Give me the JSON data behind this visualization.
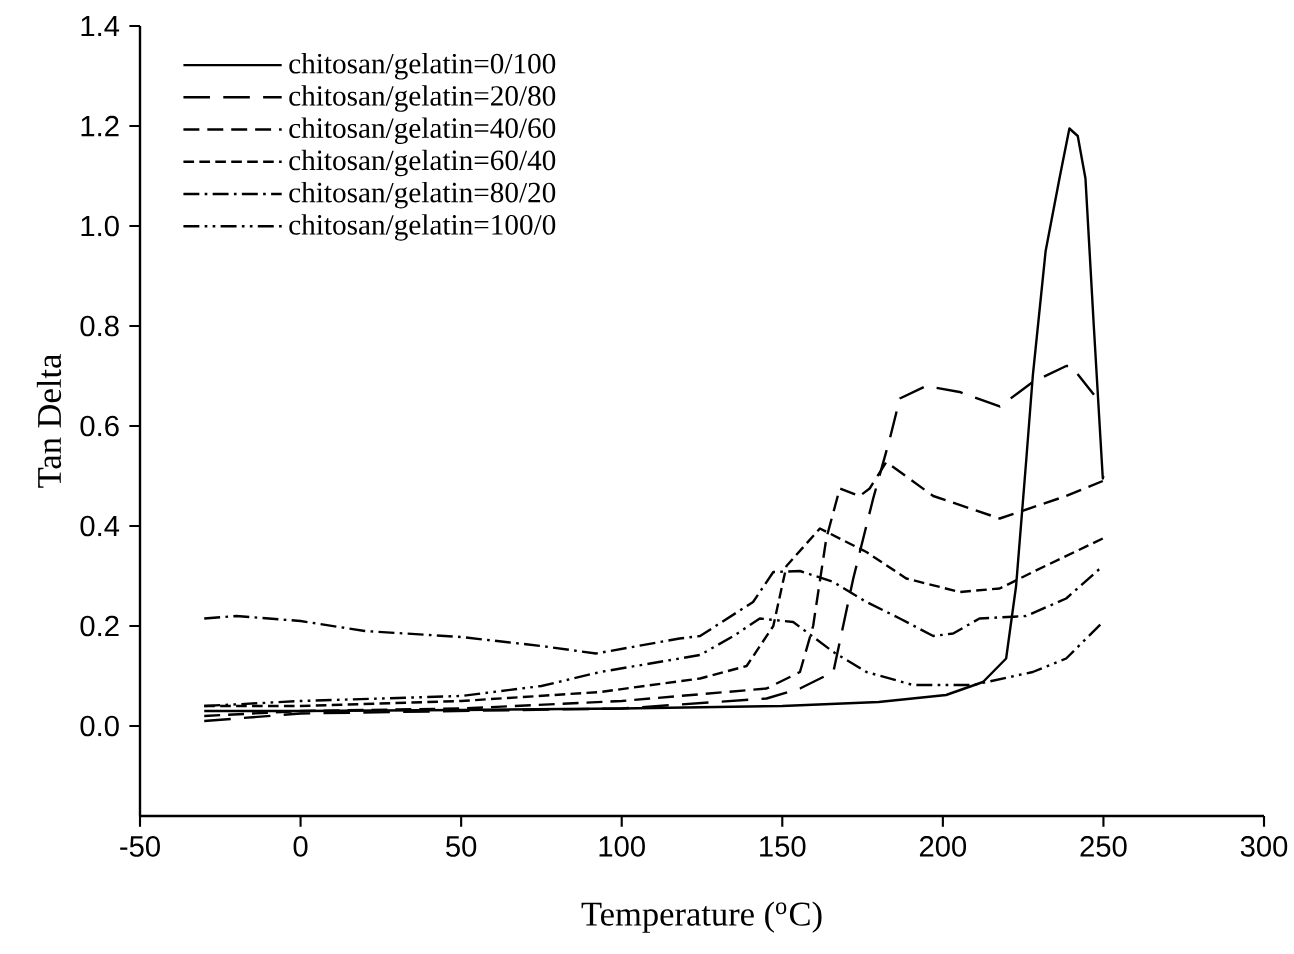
{
  "chart_data": {
    "type": "line",
    "xlabel": "Temperature ($^{o}$C)",
    "ylabel": "Tan Delta",
    "xlim": [
      -50,
      300
    ],
    "ylim": [
      -0.18,
      1.4
    ],
    "xticks": [
      -50,
      0,
      50,
      100,
      150,
      200,
      250,
      300
    ],
    "yticks": [
      {
        "value": 0,
        "label": "0.0"
      },
      0.2,
      0.4,
      0.6,
      0.8,
      {
        "value": 1,
        "label": "1.0"
      },
      1.2,
      1.4
    ],
    "legend": "top left",
    "series": [
      {
        "name": "chitosan/gelatin=0/100",
        "color": "#000000",
        "line_style": "solid",
        "x": [
          -30,
          0,
          50,
          100,
          150,
          180,
          201,
          212.5,
          219.7,
          222.8,
          226,
          228,
          232,
          236.3,
          239.4,
          242,
          244.4,
          247,
          249.8,
          250
        ],
        "values": [
          0.03,
          0.03,
          0.032,
          0.035,
          0.04,
          0.048,
          0.062,
          0.088,
          0.135,
          0.28,
          0.535,
          0.7,
          0.95,
          1.095,
          1.195,
          1.18,
          1.095,
          0.8,
          0.495,
          0.5
        ]
      },
      {
        "name": "chitosan/gelatin=20/80",
        "color": "#000000",
        "line_style": "loosely dashed",
        "x": [
          -30,
          0,
          50,
          100,
          145.1,
          155.5,
          165.9,
          172.1,
          178.3,
          183.5,
          186.6,
          194.8,
          205.2,
          217.7,
          228,
          238.4,
          240,
          248.8,
          250
        ],
        "values": [
          0.01,
          0.025,
          0.03,
          0.035,
          0.055,
          0.075,
          0.108,
          0.295,
          0.455,
          0.575,
          0.655,
          0.68,
          0.668,
          0.639,
          0.688,
          0.72,
          0.72,
          0.648,
          0.65
        ]
      },
      {
        "name": "chitosan/gelatin=40/60",
        "color": "#000000",
        "line_style": "dashed",
        "x": [
          -30,
          0,
          50,
          100,
          145.1,
          155.5,
          159.6,
          163.7,
          167.9,
          174.1,
          177.2,
          182.4,
          197,
          217.7,
          238.4,
          249.8
        ],
        "values": [
          0.02,
          0.03,
          0.035,
          0.05,
          0.075,
          0.108,
          0.2,
          0.375,
          0.475,
          0.46,
          0.475,
          0.528,
          0.46,
          0.415,
          0.46,
          0.49
        ]
      },
      {
        "name": "chitosan/gelatin=60/40",
        "color": "#000000",
        "line_style": "densely dashed",
        "x": [
          -30,
          0,
          50,
          93.3,
          124.4,
          138.9,
          147.2,
          151.3,
          161.7,
          176.2,
          188.6,
          205.2,
          217.7,
          228,
          249.8
        ],
        "values": [
          0.04,
          0.04,
          0.05,
          0.068,
          0.095,
          0.12,
          0.2,
          0.32,
          0.395,
          0.348,
          0.295,
          0.268,
          0.275,
          0.308,
          0.375
        ]
      },
      {
        "name": "chitosan/gelatin=80/20",
        "color": "#000000",
        "line_style": "dashdotted",
        "x": [
          -30,
          -20,
          0,
          20,
          50,
          75,
          92,
          118,
          124.4,
          140.9,
          147.2,
          155.5,
          165.9,
          176.2,
          186.6,
          197,
          203.2,
          211.4,
          225.9,
          238.4,
          249.8
        ],
        "values": [
          0.215,
          0.22,
          0.21,
          0.19,
          0.178,
          0.16,
          0.145,
          0.175,
          0.18,
          0.248,
          0.308,
          0.31,
          0.288,
          0.248,
          0.215,
          0.18,
          0.185,
          0.215,
          0.22,
          0.255,
          0.32
        ]
      },
      {
        "name": "chitosan/gelatin=100/0",
        "color": "#000000",
        "line_style": "dashdotdotted",
        "x": [
          -30,
          0,
          50,
          75,
          93.3,
          118,
          124.4,
          134.8,
          143,
          153.4,
          165.9,
          176.2,
          190.7,
          209.4,
          228,
          238.4,
          249.8
        ],
        "values": [
          0.04,
          0.05,
          0.06,
          0.08,
          0.108,
          0.135,
          0.142,
          0.18,
          0.215,
          0.208,
          0.148,
          0.108,
          0.082,
          0.082,
          0.108,
          0.135,
          0.208
        ]
      }
    ]
  }
}
